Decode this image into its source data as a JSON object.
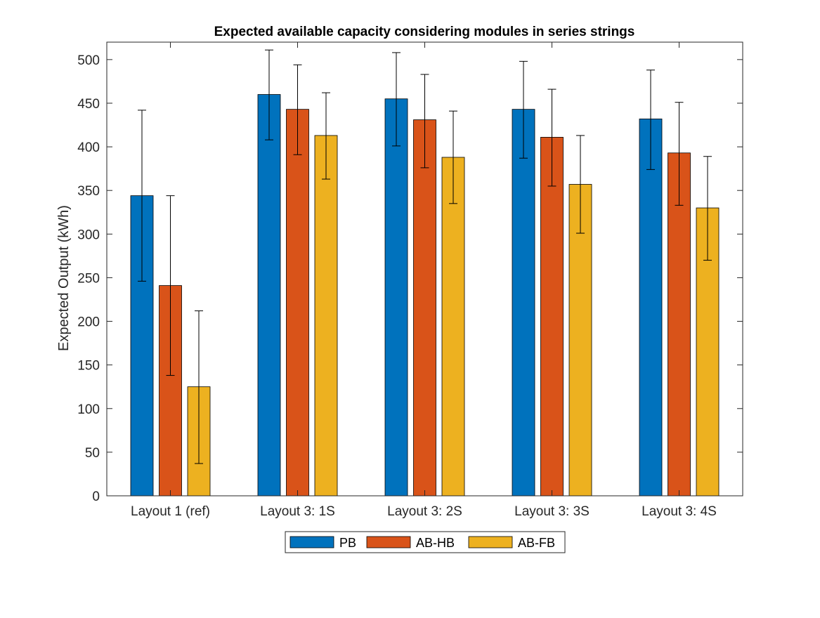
{
  "chart_data": {
    "type": "bar",
    "title": "Expected available capacity considering modules in series strings",
    "xlabel": "",
    "ylabel": "Expected Output (kWh)",
    "ylim": [
      0,
      520
    ],
    "yticks": [
      0,
      50,
      100,
      150,
      200,
      250,
      300,
      350,
      400,
      450,
      500
    ],
    "categories": [
      "Layout 1 (ref)",
      "Layout 3: 1S",
      "Layout 3: 2S",
      "Layout 3: 3S",
      "Layout 3: 4S"
    ],
    "series": [
      {
        "name": "PB",
        "color": "#0072BD",
        "values": [
          344,
          460,
          455,
          443,
          432
        ],
        "error_low": [
          246,
          408,
          401,
          387,
          374
        ],
        "error_high": [
          442,
          511,
          508,
          498,
          488
        ]
      },
      {
        "name": "AB-HB",
        "color": "#D95319",
        "values": [
          241,
          443,
          431,
          411,
          393
        ],
        "error_low": [
          138,
          391,
          376,
          355,
          333
        ],
        "error_high": [
          344,
          494,
          483,
          466,
          451
        ]
      },
      {
        "name": "AB-FB",
        "color": "#EDB120",
        "values": [
          125,
          413,
          388,
          357,
          330
        ],
        "error_low": [
          37,
          363,
          335,
          301,
          270
        ],
        "error_high": [
          212,
          462,
          441,
          413,
          389
        ]
      }
    ],
    "legend_position": "bottom-center",
    "grid": false
  }
}
